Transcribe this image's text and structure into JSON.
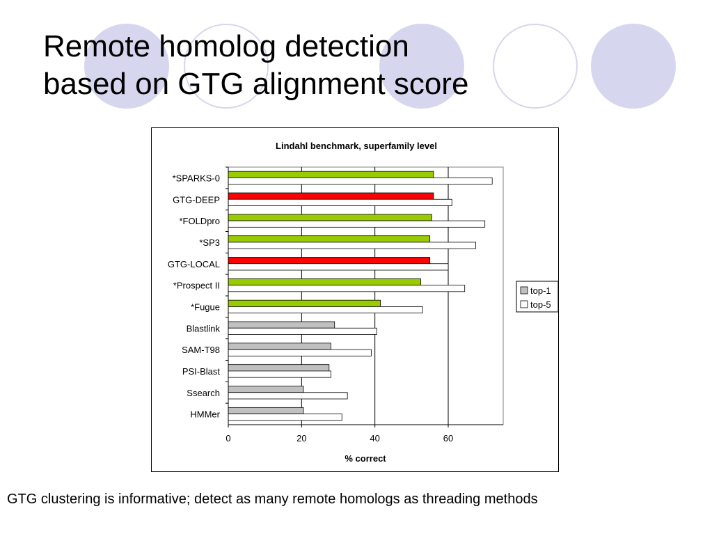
{
  "slide": {
    "title_line1": "Remote homolog detection",
    "title_line2": "based on GTG alignment score",
    "caption": "GTG clustering is informative; detect as many remote homologs as threading methods"
  },
  "theme": {
    "circle_color": "#d6d6ee",
    "bar_green": "#99cc00",
    "bar_red": "#ff0000",
    "bar_gray": "#c0c0c0",
    "bar_white": "#ffffff"
  },
  "chart_data": {
    "type": "bar",
    "orientation": "horizontal",
    "title": "Lindahl benchmark, superfamily level",
    "xlabel": "% correct",
    "ylabel": "",
    "xlim": [
      0,
      75
    ],
    "xticks": [
      0,
      20,
      40,
      60
    ],
    "grid": "vertical",
    "legend_position": "right",
    "categories": [
      "*SPARKS-0",
      "GTG-DEEP",
      "*FOLDpro",
      "*SP3",
      "GTG-LOCAL",
      "*Prospect II",
      "*Fugue",
      "Blastlink",
      "SAM-T98",
      "PSI-Blast",
      "Ssearch",
      "HMMer"
    ],
    "bar_colors_top1": [
      "green",
      "red",
      "green",
      "green",
      "red",
      "green",
      "green",
      "gray",
      "gray",
      "gray",
      "gray",
      "gray"
    ],
    "series": [
      {
        "name": "top-1",
        "values": [
          56,
          56,
          55.5,
          55,
          55,
          52.5,
          41.5,
          29,
          28,
          27.5,
          20.5,
          20.5
        ]
      },
      {
        "name": "top-5",
        "values": [
          72,
          61,
          70,
          67.5,
          60,
          64.5,
          53,
          40.5,
          39,
          28,
          32.5,
          31
        ]
      }
    ]
  }
}
